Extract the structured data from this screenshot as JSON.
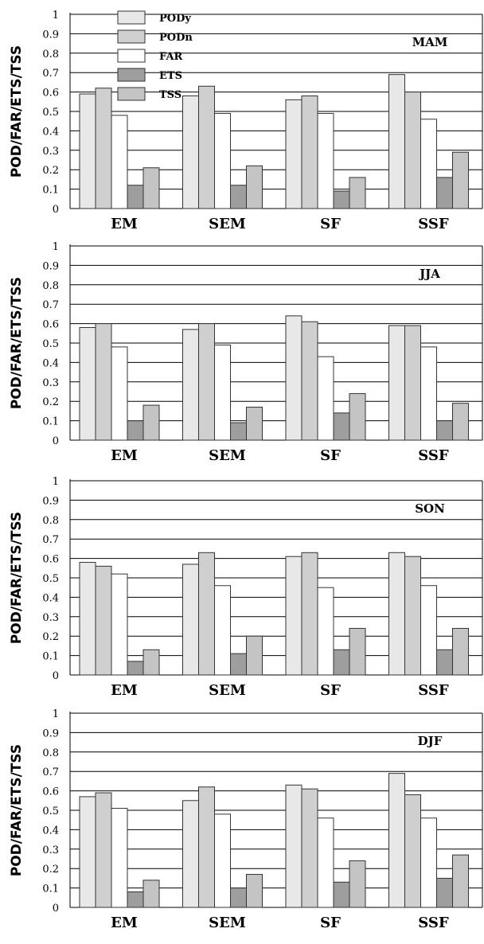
{
  "colors": {
    "PODy": "#e8e8e8",
    "PODn": "#cfcfcf",
    "FAR": "#ffffff",
    "ETS": "#9e9e9e",
    "TSS": "#c4c4c4",
    "bar_stroke": "#333333",
    "grid": "#000000"
  },
  "chart_data": [
    {
      "type": "bar",
      "title": "MAM",
      "ylabel": "POD/FAR/ETS/TSS",
      "xlabel": "",
      "ylim": [
        0,
        1
      ],
      "yticks": [
        "0",
        "0.1",
        "0.2",
        "0.3",
        "0.4",
        "0.5",
        "0.6",
        "0.7",
        "0.8",
        "0.9",
        "1"
      ],
      "grid": true,
      "legend": "top-left",
      "categories": [
        "EM",
        "SEM",
        "SF",
        "SSF"
      ],
      "series": [
        {
          "name": "PODy",
          "values": [
            0.59,
            0.58,
            0.56,
            0.69
          ]
        },
        {
          "name": "PODn",
          "values": [
            0.62,
            0.63,
            0.58,
            0.6
          ]
        },
        {
          "name": "FAR",
          "values": [
            0.48,
            0.49,
            0.49,
            0.46
          ]
        },
        {
          "name": "ETS",
          "values": [
            0.12,
            0.12,
            0.09,
            0.16
          ]
        },
        {
          "name": "TSS",
          "values": [
            0.21,
            0.22,
            0.16,
            0.29
          ]
        }
      ]
    },
    {
      "type": "bar",
      "title": "JJA",
      "ylabel": "POD/FAR/ETS/TSS",
      "xlabel": "",
      "ylim": [
        0,
        1
      ],
      "yticks": [
        "0",
        "0.1",
        "0.2",
        "0.3",
        "0.4",
        "0.5",
        "0.6",
        "0.7",
        "0.8",
        "0.9",
        "1"
      ],
      "grid": true,
      "categories": [
        "EM",
        "SEM",
        "SF",
        "SSF"
      ],
      "series": [
        {
          "name": "PODy",
          "values": [
            0.58,
            0.57,
            0.64,
            0.59
          ]
        },
        {
          "name": "PODn",
          "values": [
            0.6,
            0.6,
            0.61,
            0.59
          ]
        },
        {
          "name": "FAR",
          "values": [
            0.48,
            0.49,
            0.43,
            0.48
          ]
        },
        {
          "name": "ETS",
          "values": [
            0.1,
            0.09,
            0.14,
            0.1
          ]
        },
        {
          "name": "TSS",
          "values": [
            0.18,
            0.17,
            0.24,
            0.19
          ]
        }
      ]
    },
    {
      "type": "bar",
      "title": "SON",
      "ylabel": "POD/FAR/ETS/TSS",
      "xlabel": "",
      "ylim": [
        0,
        1
      ],
      "yticks": [
        "0",
        "0.1",
        "0.2",
        "0.3",
        "0.4",
        "0.5",
        "0.6",
        "0.7",
        "0.8",
        "0.9",
        "1"
      ],
      "grid": true,
      "categories": [
        "EM",
        "SEM",
        "SF",
        "SSF"
      ],
      "series": [
        {
          "name": "PODy",
          "values": [
            0.58,
            0.57,
            0.61,
            0.63
          ]
        },
        {
          "name": "PODn",
          "values": [
            0.56,
            0.63,
            0.63,
            0.61
          ]
        },
        {
          "name": "FAR",
          "values": [
            0.52,
            0.46,
            0.45,
            0.46
          ]
        },
        {
          "name": "ETS",
          "values": [
            0.07,
            0.11,
            0.13,
            0.13
          ]
        },
        {
          "name": "TSS",
          "values": [
            0.13,
            0.2,
            0.24,
            0.24
          ]
        }
      ]
    },
    {
      "type": "bar",
      "title": "DJF",
      "ylabel": "POD/FAR/ETS/TSS",
      "xlabel": "",
      "ylim": [
        0,
        1
      ],
      "yticks": [
        "0",
        "0.1",
        "0.2",
        "0.3",
        "0.4",
        "0.5",
        "0.6",
        "0.7",
        "0.8",
        "0.9",
        "1"
      ],
      "grid": true,
      "categories": [
        "EM",
        "SEM",
        "SF",
        "SSF"
      ],
      "series": [
        {
          "name": "PODy",
          "values": [
            0.57,
            0.55,
            0.63,
            0.69
          ]
        },
        {
          "name": "PODn",
          "values": [
            0.59,
            0.62,
            0.61,
            0.58
          ]
        },
        {
          "name": "FAR",
          "values": [
            0.51,
            0.48,
            0.46,
            0.46
          ]
        },
        {
          "name": "ETS",
          "values": [
            0.08,
            0.1,
            0.13,
            0.15
          ]
        },
        {
          "name": "TSS",
          "values": [
            0.14,
            0.17,
            0.24,
            0.27
          ]
        }
      ]
    }
  ]
}
